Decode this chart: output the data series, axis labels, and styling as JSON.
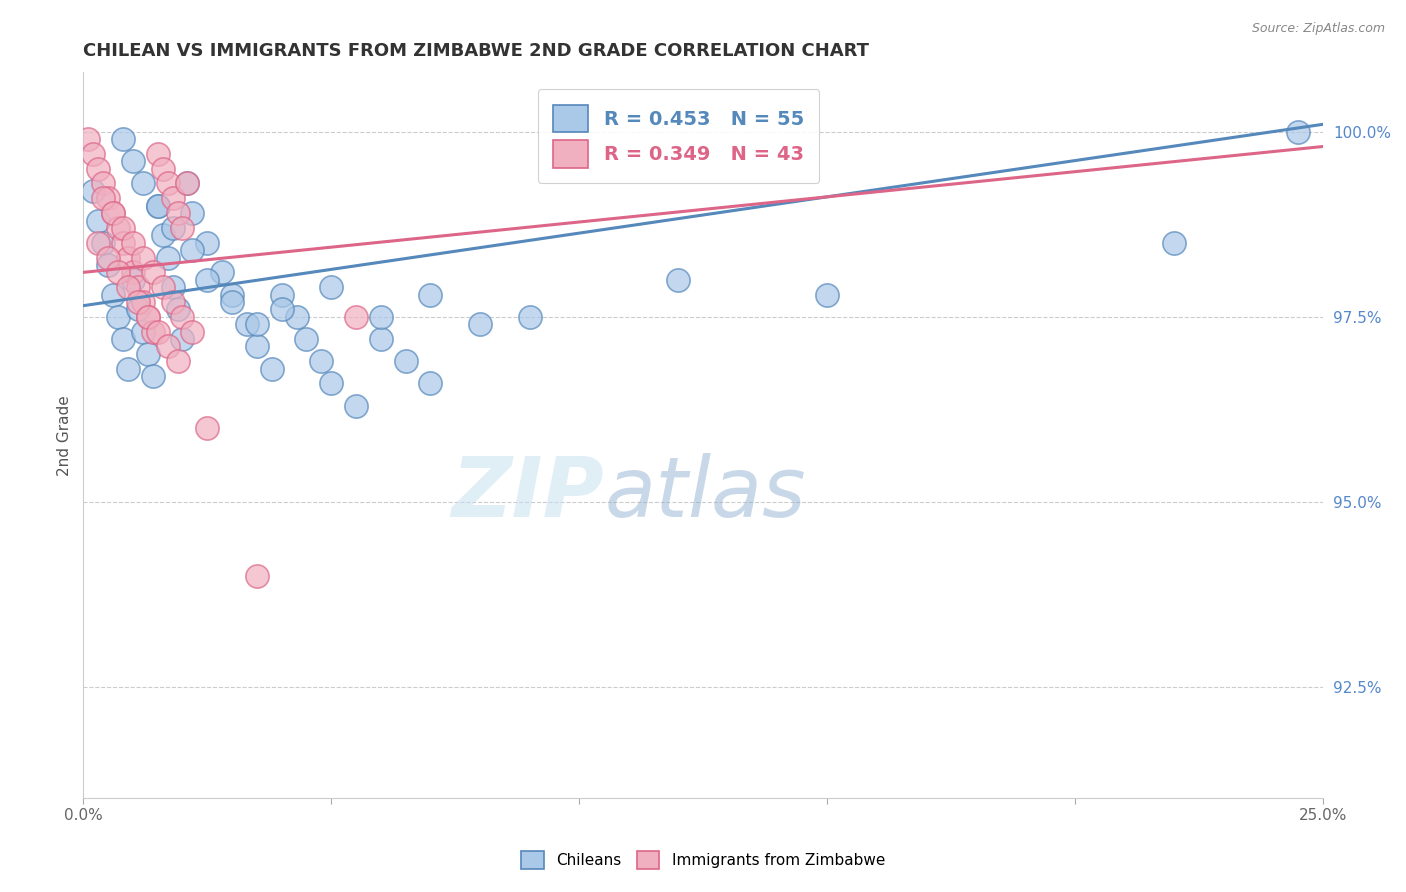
{
  "title": "CHILEAN VS IMMIGRANTS FROM ZIMBABWE 2ND GRADE CORRELATION CHART",
  "source_text": "Source: ZipAtlas.com",
  "ylabel": "2nd Grade",
  "xlim": [
    0.0,
    0.25
  ],
  "ylim": [
    0.91,
    1.008
  ],
  "xticks": [
    0.0,
    0.05,
    0.1,
    0.15,
    0.2,
    0.25
  ],
  "xtick_labels": [
    "0.0%",
    "",
    "",
    "",
    "",
    "25.0%"
  ],
  "yticks": [
    0.925,
    0.95,
    0.975,
    1.0
  ],
  "ytick_labels": [
    "92.5%",
    "95.0%",
    "97.5%",
    "100.0%"
  ],
  "r_blue": 0.453,
  "n_blue": 55,
  "r_pink": 0.349,
  "n_pink": 43,
  "blue_color": "#aac8e8",
  "pink_color": "#f0b0c0",
  "blue_edge_color": "#5588bb",
  "pink_edge_color": "#dd6688",
  "blue_line_color": "#5588bb",
  "pink_line_color": "#dd6688",
  "watermark_zip": "ZIP",
  "watermark_atlas": "atlas",
  "blue_scatter_x": [
    0.002,
    0.003,
    0.004,
    0.005,
    0.006,
    0.007,
    0.008,
    0.009,
    0.01,
    0.011,
    0.012,
    0.013,
    0.014,
    0.015,
    0.016,
    0.017,
    0.018,
    0.019,
    0.02,
    0.021,
    0.022,
    0.025,
    0.028,
    0.03,
    0.033,
    0.035,
    0.038,
    0.04,
    0.043,
    0.045,
    0.048,
    0.05,
    0.055,
    0.06,
    0.065,
    0.07,
    0.008,
    0.01,
    0.012,
    0.015,
    0.018,
    0.022,
    0.025,
    0.03,
    0.035,
    0.04,
    0.05,
    0.06,
    0.07,
    0.08,
    0.09,
    0.12,
    0.15,
    0.22,
    0.245
  ],
  "blue_scatter_y": [
    0.992,
    0.988,
    0.985,
    0.982,
    0.978,
    0.975,
    0.972,
    0.968,
    0.98,
    0.976,
    0.973,
    0.97,
    0.967,
    0.99,
    0.986,
    0.983,
    0.979,
    0.976,
    0.972,
    0.993,
    0.989,
    0.985,
    0.981,
    0.978,
    0.974,
    0.971,
    0.968,
    0.978,
    0.975,
    0.972,
    0.969,
    0.966,
    0.963,
    0.972,
    0.969,
    0.966,
    0.999,
    0.996,
    0.993,
    0.99,
    0.987,
    0.984,
    0.98,
    0.977,
    0.974,
    0.976,
    0.979,
    0.975,
    0.978,
    0.974,
    0.975,
    0.98,
    0.978,
    0.985,
    1.0
  ],
  "pink_scatter_x": [
    0.001,
    0.002,
    0.003,
    0.004,
    0.005,
    0.006,
    0.007,
    0.008,
    0.009,
    0.01,
    0.011,
    0.012,
    0.013,
    0.014,
    0.015,
    0.016,
    0.017,
    0.018,
    0.019,
    0.02,
    0.003,
    0.005,
    0.007,
    0.009,
    0.011,
    0.013,
    0.015,
    0.017,
    0.019,
    0.021,
    0.004,
    0.006,
    0.008,
    0.01,
    0.012,
    0.014,
    0.016,
    0.018,
    0.02,
    0.022,
    0.025,
    0.035,
    0.055
  ],
  "pink_scatter_y": [
    0.999,
    0.997,
    0.995,
    0.993,
    0.991,
    0.989,
    0.987,
    0.985,
    0.983,
    0.981,
    0.979,
    0.977,
    0.975,
    0.973,
    0.997,
    0.995,
    0.993,
    0.991,
    0.989,
    0.987,
    0.985,
    0.983,
    0.981,
    0.979,
    0.977,
    0.975,
    0.973,
    0.971,
    0.969,
    0.993,
    0.991,
    0.989,
    0.987,
    0.985,
    0.983,
    0.981,
    0.979,
    0.977,
    0.975,
    0.973,
    0.96,
    0.94,
    0.975
  ]
}
